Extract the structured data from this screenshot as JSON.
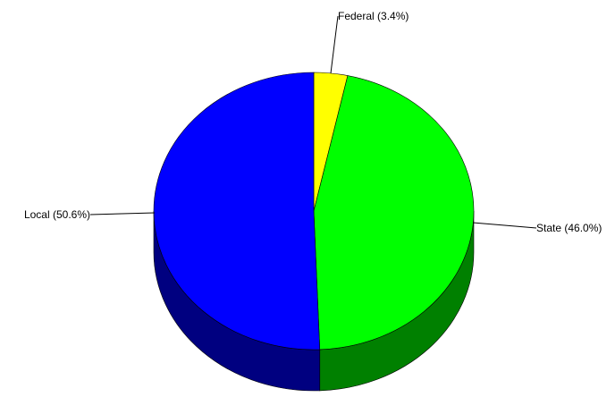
{
  "chart_data": {
    "type": "pie",
    "style": "3d",
    "title": "",
    "slices": [
      {
        "label": "Federal (3.4%)",
        "name": "Federal",
        "value": 3.4,
        "color": "#ffff00",
        "side_color": "#808000"
      },
      {
        "label": "State (46.0%)",
        "name": "State",
        "value": 46.0,
        "color": "#00ff00",
        "side_color": "#008000"
      },
      {
        "label": "Local (50.6%)",
        "name": "Local",
        "value": 50.6,
        "color": "#0000ff",
        "side_color": "#000080"
      }
    ],
    "legend": "none",
    "labels": "leader-lines"
  }
}
